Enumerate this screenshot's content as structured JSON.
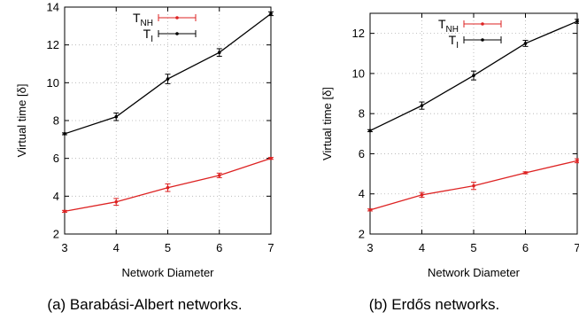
{
  "chart_data": [
    {
      "type": "line",
      "caption": "(a) Barabási-Albert networks.",
      "xlabel": "Network Diameter",
      "ylabel": "Virtual time [δ]",
      "xlim": [
        3,
        7
      ],
      "ylim": [
        2,
        14
      ],
      "xticks": [
        3,
        4,
        5,
        6,
        7
      ],
      "yticks": [
        2,
        4,
        6,
        8,
        10,
        12,
        14
      ],
      "grid": true,
      "legend_position": "top-left",
      "x": [
        3,
        4,
        5,
        6,
        7
      ],
      "series": [
        {
          "name": "T_NH",
          "label_main": "T",
          "label_sub": "NH",
          "color": "#dd2222",
          "values": [
            3.2,
            3.7,
            4.45,
            5.1,
            6.0
          ],
          "errors": [
            0.05,
            0.18,
            0.2,
            0.12,
            0.05
          ]
        },
        {
          "name": "T_I",
          "label_main": "T",
          "label_sub": "I",
          "color": "#000000",
          "values": [
            7.3,
            8.2,
            10.2,
            11.6,
            13.65
          ],
          "errors": [
            0.05,
            0.2,
            0.25,
            0.2,
            0.1
          ]
        }
      ]
    },
    {
      "type": "line",
      "caption": "(b) Erdős networks.",
      "xlabel": "Network Diameter",
      "ylabel": "Virtual time [δ]",
      "xlim": [
        3,
        7
      ],
      "ylim": [
        2,
        13
      ],
      "xticks": [
        3,
        4,
        5,
        6,
        7
      ],
      "yticks": [
        2,
        4,
        6,
        8,
        10,
        12
      ],
      "grid": true,
      "legend_position": "top-left",
      "x": [
        3,
        4,
        5,
        6,
        7
      ],
      "series": [
        {
          "name": "T_NH",
          "label_main": "T",
          "label_sub": "NH",
          "color": "#dd2222",
          "values": [
            3.2,
            3.95,
            4.4,
            5.05,
            5.65
          ],
          "errors": [
            0.05,
            0.12,
            0.18,
            0.05,
            0.1
          ]
        },
        {
          "name": "T_I",
          "label_main": "T",
          "label_sub": "I",
          "color": "#000000",
          "values": [
            7.15,
            8.4,
            9.9,
            11.5,
            12.6
          ],
          "errors": [
            0.05,
            0.18,
            0.22,
            0.15,
            0.1
          ]
        }
      ]
    }
  ]
}
